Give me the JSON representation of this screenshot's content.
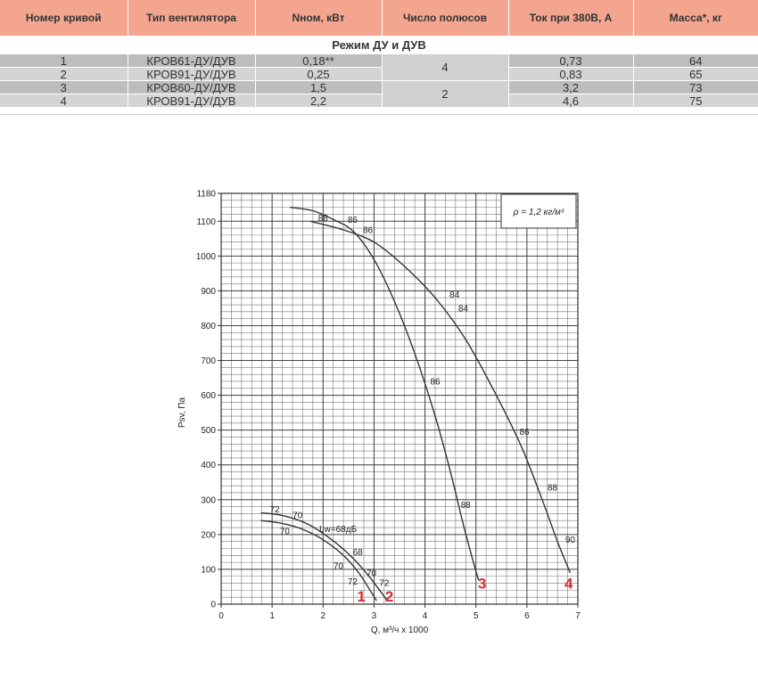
{
  "table": {
    "headers": [
      "Номер кривой",
      "Тип вентилятора",
      "Nном, кВт",
      "Число полюсов",
      "Ток при 380В, А",
      "Масса*, кг"
    ],
    "mode_label": "Режим ДУ и ДУВ",
    "rows": [
      {
        "curve": "1",
        "type": "КРОВ61-ДУ/ДУВ",
        "power": "0,18**",
        "current": "0,73",
        "mass": "64"
      },
      {
        "curve": "2",
        "type": "КРОВ91-ДУ/ДУВ",
        "power": "0,25",
        "current": "0,83",
        "mass": "65"
      },
      {
        "curve": "3",
        "type": "КРОВ60-ДУ/ДУВ",
        "power": "1,5",
        "current": "3,2",
        "mass": "73"
      },
      {
        "curve": "4",
        "type": "КРОВ91-ДУ/ДУВ",
        "power": "2,2",
        "current": "4,6",
        "mass": "75"
      }
    ],
    "poles": [
      "4",
      "2"
    ]
  },
  "chart_data": {
    "type": "line",
    "xlabel": "Q, м³/ч x 1000",
    "ylabel": "Psv, Па",
    "xlim": [
      0,
      7
    ],
    "ylim": [
      0,
      1180
    ],
    "xticks": [
      0,
      1,
      2,
      3,
      4,
      5,
      6,
      7
    ],
    "yticks": [
      0,
      100,
      200,
      300,
      400,
      500,
      600,
      700,
      800,
      900,
      1000,
      1100,
      1180
    ],
    "grid": true,
    "density_note": "ρ = 1,2 кг/м³",
    "lw_label": "Lw=68дБ",
    "series": [
      {
        "name": "1",
        "x": [
          0.78,
          1.2,
          1.6,
          2.0,
          2.4,
          2.7,
          2.9,
          3.05
        ],
        "y": [
          240,
          232,
          215,
          185,
          140,
          90,
          45,
          10
        ],
        "db_labels": [
          {
            "x": 1.05,
            "y": 272,
            "text": "72"
          },
          {
            "x": 1.25,
            "y": 210,
            "text": "70"
          },
          {
            "x": 2.3,
            "y": 110,
            "text": "70"
          },
          {
            "x": 2.58,
            "y": 65,
            "text": "72"
          }
        ]
      },
      {
        "name": "2",
        "x": [
          0.78,
          1.2,
          1.7,
          2.2,
          2.6,
          2.9,
          3.1,
          3.25
        ],
        "y": [
          262,
          255,
          230,
          182,
          130,
          80,
          42,
          12
        ],
        "db_labels": [
          {
            "x": 1.5,
            "y": 256,
            "text": "70"
          },
          {
            "x": 2.68,
            "y": 150,
            "text": "68"
          },
          {
            "x": 2.95,
            "y": 90,
            "text": "70"
          },
          {
            "x": 3.2,
            "y": 62,
            "text": "72"
          }
        ]
      },
      {
        "name": "3",
        "x": [
          1.35,
          1.8,
          2.2,
          2.6,
          3.0,
          3.4,
          3.8,
          4.2,
          4.5,
          4.75,
          4.95,
          5.05
        ],
        "y": [
          1140,
          1130,
          1105,
          1070,
          990,
          870,
          720,
          540,
          380,
          230,
          120,
          70
        ],
        "db_labels": [
          {
            "x": 2.0,
            "y": 1110,
            "text": "88"
          },
          {
            "x": 2.58,
            "y": 1105,
            "text": "86"
          },
          {
            "x": 4.2,
            "y": 640,
            "text": "86"
          },
          {
            "x": 4.8,
            "y": 285,
            "text": "88"
          }
        ]
      },
      {
        "name": "4",
        "x": [
          1.75,
          2.4,
          3.0,
          3.6,
          4.2,
          4.8,
          5.4,
          5.9,
          6.3,
          6.6,
          6.85
        ],
        "y": [
          1100,
          1075,
          1040,
          970,
          880,
          760,
          600,
          450,
          300,
          180,
          90
        ],
        "db_labels": [
          {
            "x": 2.88,
            "y": 1075,
            "text": "86"
          },
          {
            "x": 4.58,
            "y": 890,
            "text": "84"
          },
          {
            "x": 4.75,
            "y": 850,
            "text": "84"
          },
          {
            "x": 5.95,
            "y": 495,
            "text": "86"
          },
          {
            "x": 6.5,
            "y": 335,
            "text": "88"
          },
          {
            "x": 6.85,
            "y": 185,
            "text": "90"
          }
        ]
      }
    ],
    "curve_numbers": [
      {
        "label": "1",
        "x": 2.75,
        "y": 8
      },
      {
        "label": "2",
        "x": 3.3,
        "y": 8
      },
      {
        "label": "3",
        "x": 5.12,
        "y": 45
      },
      {
        "label": "4",
        "x": 6.82,
        "y": 45
      }
    ],
    "colors": {
      "curve": "#333333",
      "grid": "#777777",
      "curve_number": "#d52b3a"
    }
  }
}
